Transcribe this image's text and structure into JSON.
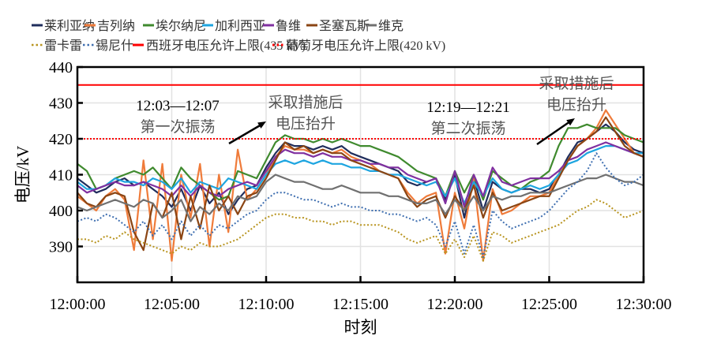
{
  "chart_data": {
    "type": "line",
    "xlabel": "时刻",
    "ylabel": "电压/kV",
    "ylim": [
      380,
      440
    ],
    "yticks": [
      390,
      400,
      410,
      420,
      430,
      440
    ],
    "xticks": [
      "12:00:00",
      "12:05:00",
      "12:10:00",
      "12:15:00",
      "12:20:00",
      "12:25:00",
      "12:30:00"
    ],
    "xlim": [
      "12:00:00",
      "12:30:00"
    ],
    "grid": true,
    "legend_placement": "top",
    "x": [
      "12:00:00",
      "12:00:30",
      "12:01:00",
      "12:01:30",
      "12:02:00",
      "12:02:30",
      "12:03:00",
      "12:03:30",
      "12:04:00",
      "12:04:30",
      "12:05:00",
      "12:05:30",
      "12:06:00",
      "12:06:30",
      "12:07:00",
      "12:07:30",
      "12:08:00",
      "12:08:30",
      "12:09:00",
      "12:09:30",
      "12:10:00",
      "12:10:30",
      "12:11:00",
      "12:11:30",
      "12:12:00",
      "12:12:30",
      "12:13:00",
      "12:13:30",
      "12:14:00",
      "12:14:30",
      "12:15:00",
      "12:15:30",
      "12:16:00",
      "12:16:30",
      "12:17:00",
      "12:17:30",
      "12:18:00",
      "12:18:30",
      "12:19:00",
      "12:19:30",
      "12:20:00",
      "12:20:30",
      "12:21:00",
      "12:21:30",
      "12:22:00",
      "12:22:30",
      "12:23:00",
      "12:23:30",
      "12:24:00",
      "12:24:30",
      "12:25:00",
      "12:25:30",
      "12:26:00",
      "12:26:30",
      "12:27:00",
      "12:27:30",
      "12:28:00",
      "12:28:30",
      "12:29:00",
      "12:29:30",
      "12:30:00"
    ],
    "series": [
      {
        "name": "莱利亚纳",
        "color": "#1f2d5c",
        "style": "solid",
        "values": [
          409,
          407,
          405,
          406,
          408,
          409,
          407,
          408,
          406,
          404,
          401,
          406,
          400,
          407,
          402,
          405,
          399,
          403,
          406,
          407,
          412,
          416,
          419,
          418,
          418,
          417,
          418,
          417,
          418,
          416,
          415,
          414,
          413,
          412,
          411,
          408,
          407,
          408,
          409,
          403,
          410,
          398,
          409,
          400,
          408,
          406,
          405,
          406,
          406,
          405,
          406,
          410,
          415,
          419,
          420,
          422,
          424,
          422,
          419,
          417,
          416
        ]
      },
      {
        "name": "吉列纳",
        "color": "#ef7b3a",
        "style": "solid",
        "values": [
          404,
          402,
          400,
          404,
          406,
          403,
          389,
          414,
          392,
          413,
          386,
          410,
          398,
          413,
          390,
          410,
          394,
          417,
          403,
          406,
          410,
          415,
          418,
          417,
          417,
          416,
          417,
          416,
          417,
          415,
          414,
          413,
          411,
          410,
          409,
          405,
          402,
          404,
          405,
          388,
          405,
          395,
          409,
          386,
          406,
          399,
          400,
          402,
          404,
          404,
          405,
          410,
          414,
          418,
          420,
          423,
          428,
          424,
          420,
          416,
          415
        ]
      },
      {
        "name": "埃尔纳尼",
        "color": "#3f8a2e",
        "style": "solid",
        "values": [
          413,
          411,
          406,
          407,
          409,
          410,
          411,
          410,
          412,
          409,
          406,
          412,
          409,
          407,
          405,
          403,
          404,
          411,
          410,
          409,
          414,
          419,
          421,
          420,
          420,
          419,
          420,
          419,
          420,
          419,
          418,
          418,
          417,
          416,
          415,
          413,
          411,
          410,
          409,
          404,
          411,
          405,
          410,
          403,
          411,
          409,
          407,
          406,
          408,
          409,
          411,
          418,
          423,
          423,
          424,
          423,
          423,
          423,
          421,
          420,
          419
        ]
      },
      {
        "name": "加利西亚",
        "color": "#1ea5e0",
        "style": "solid",
        "values": [
          408,
          406,
          406,
          407,
          409,
          408,
          408,
          407,
          409,
          408,
          406,
          409,
          405,
          408,
          407,
          406,
          409,
          408,
          407,
          406,
          410,
          413,
          414,
          413,
          414,
          413,
          414,
          413,
          413,
          412,
          412,
          411,
          411,
          410,
          410,
          409,
          408,
          407,
          408,
          404,
          409,
          402,
          408,
          404,
          409,
          406,
          405,
          406,
          407,
          406,
          407,
          410,
          413,
          414,
          416,
          417,
          418,
          418,
          417,
          416,
          416
        ]
      },
      {
        "name": "鲁维",
        "color": "#8030a0",
        "style": "solid",
        "values": [
          407,
          405,
          406,
          407,
          408,
          407,
          407,
          408,
          407,
          406,
          404,
          407,
          404,
          407,
          405,
          404,
          406,
          407,
          408,
          407,
          411,
          415,
          417,
          416,
          416,
          415,
          416,
          415,
          415,
          414,
          414,
          413,
          413,
          412,
          412,
          410,
          409,
          408,
          409,
          402,
          411,
          401,
          410,
          404,
          412,
          408,
          407,
          408,
          409,
          409,
          409,
          411,
          414,
          415,
          417,
          418,
          419,
          418,
          417,
          416,
          415
        ]
      },
      {
        "name": "圣塞瓦斯",
        "color": "#8b4513",
        "style": "solid",
        "values": [
          405,
          402,
          401,
          404,
          405,
          404,
          394,
          389,
          402,
          398,
          405,
          392,
          404,
          395,
          407,
          400,
          404,
          399,
          404,
          405,
          409,
          414,
          419,
          417,
          418,
          416,
          417,
          416,
          416,
          414,
          413,
          412,
          411,
          410,
          409,
          404,
          401,
          403,
          404,
          398,
          404,
          400,
          407,
          398,
          405,
          400,
          401,
          402,
          403,
          404,
          404,
          409,
          414,
          418,
          420,
          422,
          426,
          422,
          418,
          416,
          415
        ]
      },
      {
        "name": "维克",
        "color": "#707070",
        "style": "solid",
        "values": [
          401,
          400,
          401,
          402,
          403,
          402,
          401,
          403,
          402,
          398,
          400,
          403,
          397,
          401,
          399,
          402,
          400,
          404,
          403,
          404,
          408,
          410,
          409,
          408,
          408,
          407,
          406,
          406,
          407,
          406,
          405,
          405,
          405,
          404,
          404,
          403,
          402,
          402,
          403,
          399,
          403,
          400,
          404,
          400,
          404,
          403,
          404,
          404,
          405,
          405,
          405,
          406,
          407,
          408,
          409,
          409,
          410,
          409,
          408,
          408,
          407
        ]
      },
      {
        "name": "雷卡雷",
        "color": "#b8941f",
        "style": "dotted",
        "values": [
          392,
          392,
          391,
          393,
          392,
          394,
          392,
          391,
          390,
          389,
          388,
          390,
          389,
          391,
          390,
          390,
          391,
          392,
          394,
          396,
          398,
          399,
          399,
          398,
          398,
          397,
          397,
          396,
          397,
          397,
          396,
          396,
          396,
          395,
          394,
          392,
          391,
          392,
          393,
          388,
          392,
          387,
          393,
          386,
          394,
          393,
          391,
          392,
          393,
          394,
          395,
          396,
          398,
          400,
          401,
          403,
          402,
          400,
          398,
          399,
          400
        ]
      },
      {
        "name": "锡尼什",
        "color": "#3f6fb0",
        "style": "dotted",
        "values": [
          397,
          398,
          397,
          399,
          398,
          396,
          394,
          397,
          393,
          396,
          392,
          397,
          393,
          396,
          393,
          396,
          395,
          397,
          399,
          400,
          403,
          405,
          405,
          404,
          403,
          403,
          402,
          401,
          402,
          401,
          401,
          400,
          400,
          399,
          399,
          398,
          397,
          398,
          396,
          390,
          397,
          388,
          396,
          387,
          400,
          397,
          395,
          396,
          397,
          398,
          400,
          403,
          406,
          408,
          411,
          416,
          412,
          409,
          407,
          408,
          410
        ]
      }
    ],
    "reference_lines": [
      {
        "name": "西班牙电压允许上限(435 kV)",
        "value": 435,
        "color": "#ff0000",
        "style": "solid"
      },
      {
        "name": "葡萄牙电压允许上限(420 kV)",
        "value": 420,
        "color": "#ff0000",
        "style": "dotted"
      }
    ],
    "annotations": [
      {
        "lines": [
          "12:03—12:07",
          "第一次振荡"
        ]
      },
      {
        "lines": [
          "采取措施后",
          "电压抬升"
        ]
      },
      {
        "lines": [
          "12:19—12:21",
          "第二次振荡"
        ]
      },
      {
        "lines": [
          "采取措施后",
          "电压抬升"
        ]
      }
    ]
  }
}
